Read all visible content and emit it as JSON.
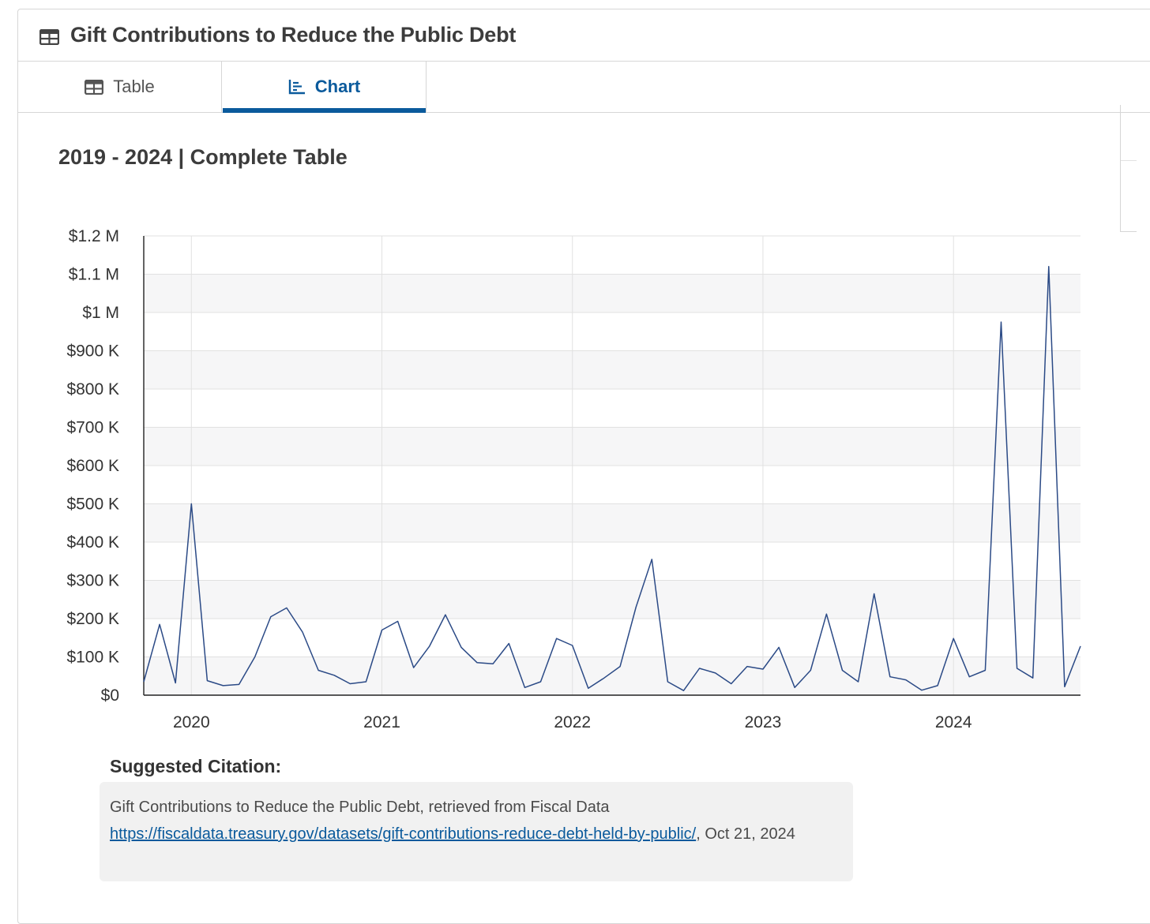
{
  "header": {
    "title": "Gift Contributions to Reduce the Public Debt",
    "icon": "table-icon"
  },
  "tabs": [
    {
      "label": "Table",
      "icon": "table-icon",
      "active": false
    },
    {
      "label": "Chart",
      "icon": "chart-icon",
      "active": true
    }
  ],
  "range_title": "2019 - 2024 | Complete Table",
  "chart_data": {
    "type": "line",
    "title": "",
    "xlabel": "",
    "ylabel": "",
    "x_ticks": [
      "2020",
      "2021",
      "2022",
      "2023",
      "2024"
    ],
    "y_ticks": [
      "$0",
      "$100 K",
      "$200 K",
      "$300 K",
      "$400 K",
      "$500 K",
      "$600 K",
      "$700 K",
      "$800 K",
      "$900 K",
      "$1 M",
      "$1.1 M",
      "$1.2 M"
    ],
    "ylim": [
      0,
      1200000
    ],
    "xlim": [
      "2019-10",
      "2024-09"
    ],
    "grid": true,
    "line_color": "#2b4a86",
    "series": [
      {
        "x": [
          "2019-10",
          "2019-11",
          "2019-12",
          "2020-01",
          "2020-02",
          "2020-03",
          "2020-04",
          "2020-05",
          "2020-06",
          "2020-07",
          "2020-08",
          "2020-09",
          "2020-10",
          "2020-11",
          "2020-12",
          "2021-01",
          "2021-02",
          "2021-03",
          "2021-04",
          "2021-05",
          "2021-06",
          "2021-07",
          "2021-08",
          "2021-09",
          "2021-10",
          "2021-11",
          "2021-12",
          "2022-01",
          "2022-02",
          "2022-03",
          "2022-04",
          "2022-05",
          "2022-06",
          "2022-07",
          "2022-08",
          "2022-09",
          "2022-10",
          "2022-11",
          "2022-12",
          "2023-01",
          "2023-02",
          "2023-03",
          "2023-04",
          "2023-05",
          "2023-06",
          "2023-07",
          "2023-08",
          "2023-09",
          "2023-10",
          "2023-11",
          "2023-12",
          "2024-01",
          "2024-02",
          "2024-03",
          "2024-04",
          "2024-05",
          "2024-06",
          "2024-07",
          "2024-08",
          "2024-09"
        ],
        "values": [
          35000,
          185000,
          32000,
          500000,
          38000,
          25000,
          28000,
          100000,
          205000,
          228000,
          165000,
          65000,
          52000,
          30000,
          35000,
          170000,
          193000,
          72000,
          128000,
          210000,
          125000,
          85000,
          82000,
          135000,
          20000,
          35000,
          148000,
          130000,
          18000,
          45000,
          75000,
          230000,
          355000,
          35000,
          12000,
          70000,
          58000,
          30000,
          75000,
          68000,
          125000,
          20000,
          65000,
          212000,
          65000,
          35000,
          265000,
          48000,
          40000,
          13000,
          25000,
          148000,
          48000,
          65000,
          975000,
          70000,
          45000,
          1120000,
          22000,
          128000
        ]
      }
    ]
  },
  "citation": {
    "heading": "Suggested Citation:",
    "text_before": "Gift Contributions to Reduce the Public Debt, retrieved from Fiscal Data ",
    "link": "https://fiscaldata.treasury.gov/datasets/gift-contributions-reduce-debt-held-by-public/",
    "text_after": ", Oct 21, 2024"
  }
}
